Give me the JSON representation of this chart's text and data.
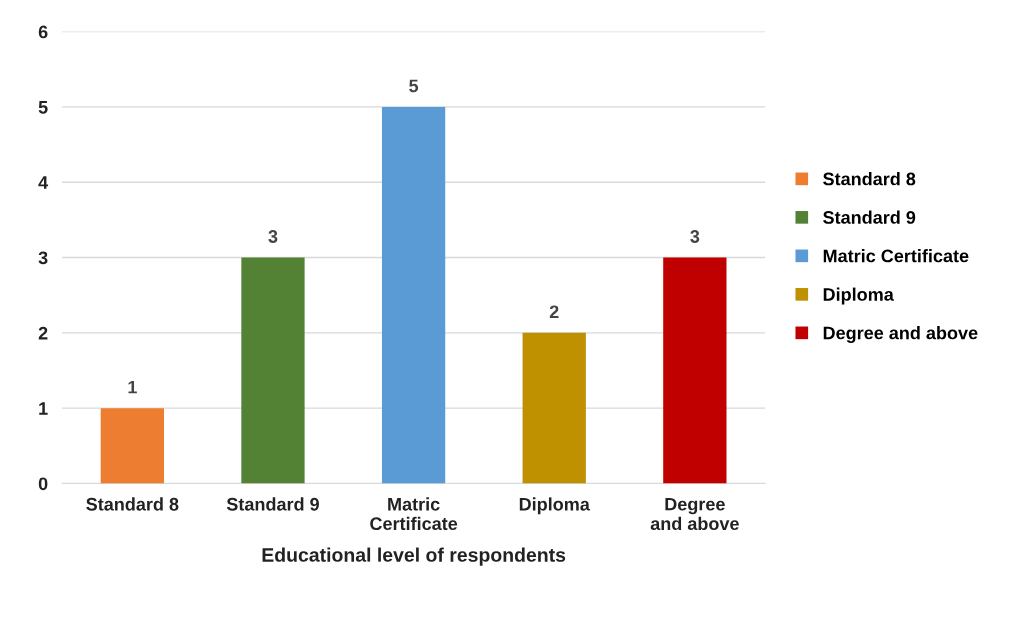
{
  "chart_data": {
    "type": "bar",
    "xlabel": "Educational level of respondents",
    "categories": [
      "Standard 8",
      "Standard 9",
      "Matric Certificate",
      "Diploma",
      "Degree and above"
    ],
    "stacked": true,
    "series": [
      {
        "name": "Standard 8",
        "color": "#ed7d31",
        "values": [
          1,
          null,
          null,
          null,
          null
        ]
      },
      {
        "name": "Standard 9",
        "color": "#548235",
        "values": [
          null,
          3,
          null,
          null,
          null
        ]
      },
      {
        "name": "Matric Certificate",
        "color": "#5b9bd5",
        "values": [
          null,
          null,
          5,
          null,
          null
        ]
      },
      {
        "name": "Diploma",
        "color": "#bf9000",
        "values": [
          null,
          null,
          null,
          2,
          null
        ]
      },
      {
        "name": "Degree and above",
        "color": "#c00000",
        "values": [
          null,
          null,
          null,
          null,
          3
        ]
      }
    ],
    "ylim": [
      0,
      6
    ],
    "yticks": [
      0,
      1,
      2,
      3,
      4,
      5,
      6
    ],
    "grid": "y",
    "data_labels": true,
    "legend": "right"
  }
}
